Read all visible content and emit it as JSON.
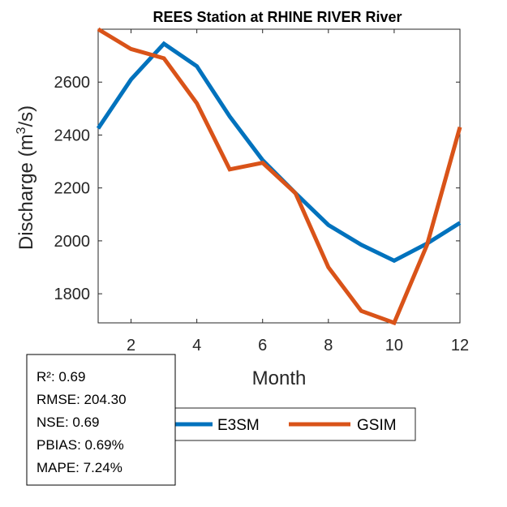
{
  "chart_data": {
    "type": "line",
    "title": "REES  Station at  RHINE RIVER  River",
    "xlabel": "Month",
    "ylabel_main": "Discharge (m",
    "ylabel_sup": "3",
    "ylabel_tail": "/s)",
    "xlim": [
      1,
      12
    ],
    "ylim": [
      1690,
      2800
    ],
    "xticks": [
      2,
      4,
      6,
      8,
      10,
      12
    ],
    "yticks": [
      1800,
      2000,
      2200,
      2400,
      2600
    ],
    "grid": false,
    "x": [
      1,
      2,
      3,
      4,
      5,
      6,
      7,
      8,
      9,
      10,
      11,
      12
    ],
    "series": [
      {
        "name": "E3SM",
        "color": "#0072BD",
        "values": [
          2425,
          2610,
          2745,
          2660,
          2470,
          2305,
          2180,
          2060,
          1985,
          1925,
          1990,
          2068
        ]
      },
      {
        "name": "GSIM",
        "color": "#D95319",
        "values": [
          2800,
          2725,
          2690,
          2520,
          2270,
          2295,
          2180,
          1900,
          1735,
          1690,
          1985,
          2430
        ]
      }
    ],
    "legend_position": "bottom",
    "stats": [
      {
        "label": "R²",
        "value": "0.69"
      },
      {
        "label": "RMSE",
        "value": "204.30"
      },
      {
        "label": "NSE",
        "value": "0.69"
      },
      {
        "label": "PBIAS",
        "value": "0.69%"
      },
      {
        "label": "MAPE",
        "value": "7.24%"
      }
    ]
  }
}
